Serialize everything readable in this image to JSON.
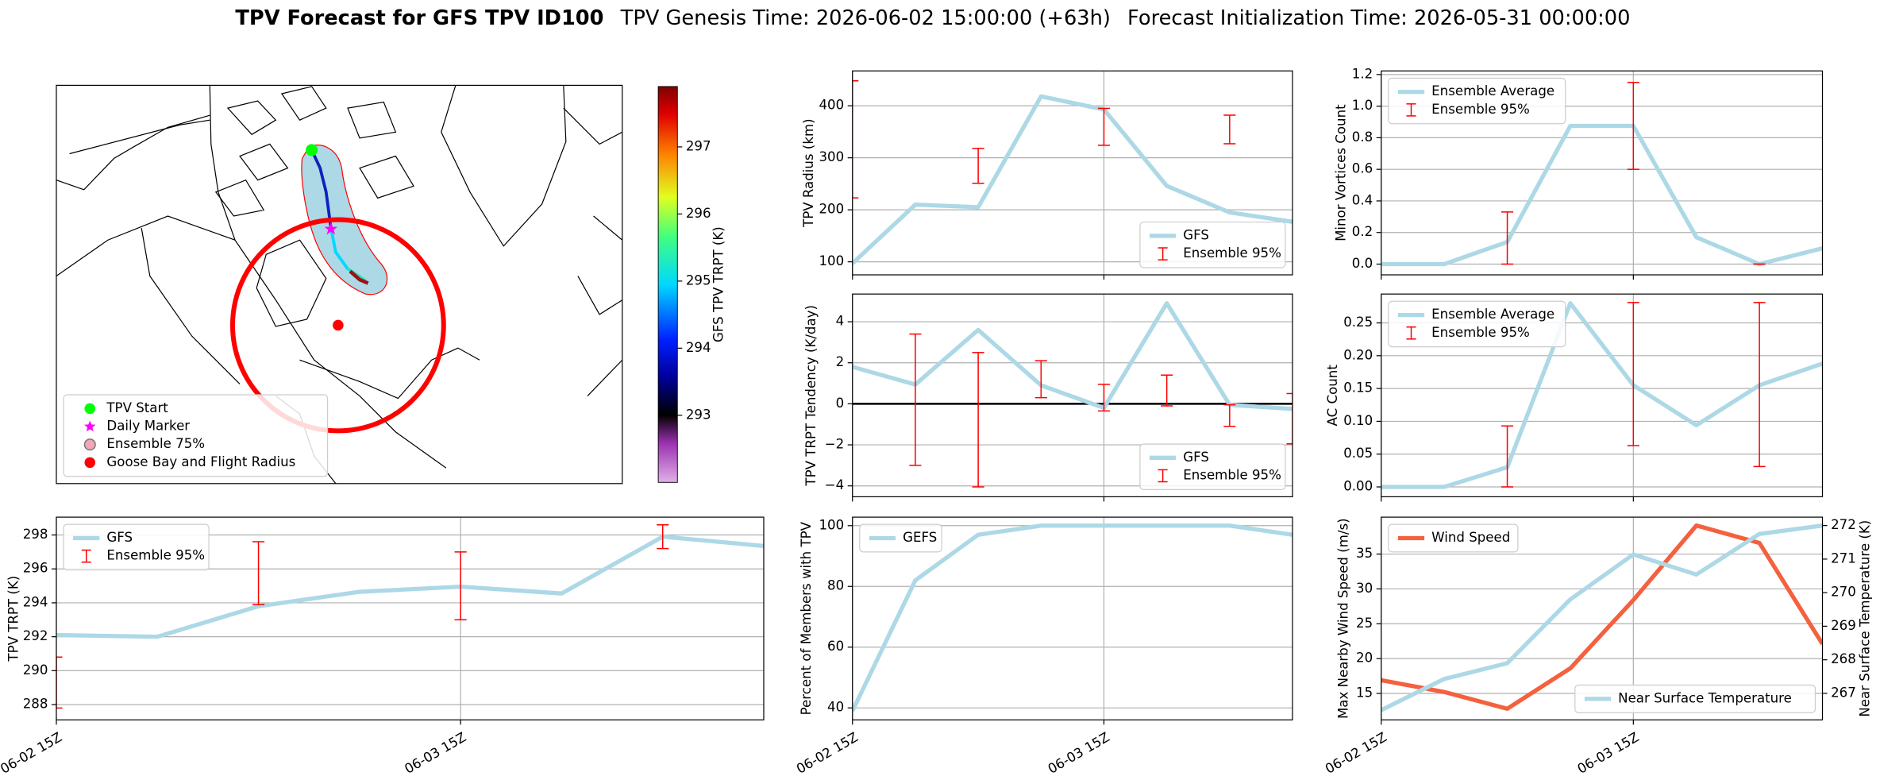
{
  "figure_title": {
    "main": "TPV Forecast for GFS TPV ID100",
    "genesis": "TPV Genesis Time: 2026-06-02 15:00:00 (+63h)",
    "initialization": "Forecast Initialization Time: 2026-05-31 00:00:00"
  },
  "chart_data": [
    {
      "type": "map",
      "legend": [
        {
          "label": "TPV Start",
          "color": "#00ff00"
        },
        {
          "label": "Daily Marker",
          "color": "#ff00ff"
        },
        {
          "label": "Ensemble 75%",
          "color": "#f4a6b8"
        },
        {
          "label": "Goose Bay and Flight Radius",
          "color": "#ff0000"
        }
      ],
      "colorbar": {
        "label": "GFS TPV TRPT (K)",
        "lim": [
          292.0,
          297.9
        ],
        "ticks": [
          293,
          294,
          295,
          296,
          297
        ]
      }
    },
    {
      "type": "line",
      "ylabel": "TPV Radius (km)",
      "ylim": [
        75,
        467
      ],
      "yticks": [
        100,
        200,
        300,
        400
      ],
      "grid": true,
      "legend": "lower right",
      "series": [
        {
          "name": "GFS",
          "color": "#add8e6",
          "values": [
            97,
            210,
            205,
            418,
            393,
            246,
            195,
            177
          ]
        }
      ],
      "error_bars": {
        "name": "Ensemble 95%",
        "color": "#ff0000",
        "lower": [
          223,
          null,
          251,
          null,
          324,
          null,
          327,
          null
        ],
        "upper": [
          448,
          null,
          318,
          null,
          395,
          null,
          382,
          null
        ]
      }
    },
    {
      "type": "line",
      "ylabel": "TPV TRPT Tendency (K/day)",
      "ylim": [
        -4.53,
        5.35
      ],
      "yticks": [
        {
          "value": -4,
          "label": "−4"
        },
        {
          "value": -2,
          "label": "−2"
        },
        0,
        2,
        4
      ],
      "grid": true,
      "legend": "lower right",
      "reference_line": 0,
      "series": [
        {
          "name": "GFS",
          "color": "#add8e6",
          "values": [
            1.8,
            0.94,
            3.6,
            0.9,
            -0.2,
            4.9,
            -0.05,
            -0.25
          ]
        }
      ],
      "error_bars": {
        "name": "Ensemble 95%",
        "color": "#ff0000",
        "lower": [
          null,
          -3.0,
          -4.05,
          0.3,
          -0.35,
          -0.1,
          -1.1,
          -1.95
        ],
        "upper": [
          null,
          3.4,
          2.5,
          2.1,
          0.95,
          1.4,
          -0.05,
          0.5
        ]
      }
    },
    {
      "type": "line",
      "ylabel": "Minor Vortices Count",
      "ylim": [
        -0.068,
        1.223
      ],
      "yticks": [
        {
          "value": 0,
          "label": "0.0"
        },
        0.2,
        0.4,
        0.6,
        0.8,
        {
          "value": 1,
          "label": "1.0"
        },
        1.2
      ],
      "grid": true,
      "legend": "upper left",
      "series": [
        {
          "name": "Ensemble Average",
          "color": "#add8e6",
          "values": [
            0,
            0,
            0.14,
            0.875,
            0.875,
            0.17,
            0,
            0.1
          ]
        }
      ],
      "error_bars": {
        "name": "Ensemble 95%",
        "color": "#ff0000",
        "lower": [
          null,
          null,
          0,
          null,
          0.6,
          null,
          0,
          null
        ],
        "upper": [
          null,
          null,
          0.33,
          null,
          1.15,
          null,
          0,
          null
        ]
      }
    },
    {
      "type": "line",
      "ylabel": "AC Count",
      "ylim": [
        -0.015,
        0.294
      ],
      "yticks": [
        {
          "value": 0,
          "label": "0.00"
        },
        0.05,
        {
          "value": 0.1,
          "label": "0.10"
        },
        0.15,
        {
          "value": 0.2,
          "label": "0.20"
        },
        0.25
      ],
      "grid": true,
      "legend": "upper left",
      "series": [
        {
          "name": "Ensemble Average",
          "color": "#add8e6",
          "values": [
            0,
            0,
            0.03,
            0.28,
            0.155,
            0.094,
            0.155,
            0.188
          ]
        }
      ],
      "error_bars": {
        "name": "Ensemble 95%",
        "color": "#ff0000",
        "lower": [
          null,
          null,
          0,
          null,
          0.063,
          null,
          0.031,
          null
        ],
        "upper": [
          null,
          null,
          0.093,
          null,
          0.281,
          null,
          0.281,
          null
        ]
      }
    },
    {
      "type": "line",
      "ylabel": "TPV TRPT (K)",
      "categories": [
        "06-02 15Z",
        null,
        null,
        null,
        "06-03 15Z",
        null,
        null,
        null
      ],
      "ylim": [
        287.1,
        299.05
      ],
      "yticks": [
        288,
        290,
        292,
        294,
        296,
        298
      ],
      "grid": true,
      "legend": "upper left",
      "series": [
        {
          "name": "GFS",
          "color": "#add8e6",
          "values": [
            292.1,
            292.0,
            293.8,
            294.65,
            294.95,
            294.55,
            297.9,
            297.35
          ]
        }
      ],
      "error_bars": {
        "name": "Ensemble 95%",
        "color": "#ff0000",
        "lower": [
          287.8,
          null,
          293.9,
          null,
          293.0,
          null,
          297.2,
          null
        ],
        "upper": [
          290.8,
          null,
          297.6,
          null,
          297.0,
          null,
          298.6,
          null
        ]
      }
    },
    {
      "type": "line",
      "ylabel": "Percent of Members with TPV",
      "categories": [
        "06-02 15Z",
        null,
        null,
        null,
        "06-03 15Z",
        null,
        null,
        null
      ],
      "ylim": [
        36.05,
        102.8
      ],
      "yticks": [
        40,
        60,
        80,
        100
      ],
      "grid": true,
      "legend": "upper left",
      "series": [
        {
          "name": "GEFS",
          "color": "#add8e6",
          "values": [
            39,
            82,
            97,
            100,
            100,
            100,
            100,
            97
          ]
        }
      ]
    },
    {
      "type": "line",
      "ylabel": "Max Nearby Wind Speed (m/s)",
      "ylabel_color": "#f4613e",
      "y2label": "Near Surface Temperature (K)",
      "y2label_color": "#4169e1",
      "categories": [
        "06-02 15Z",
        null,
        null,
        null,
        "06-03 15Z",
        null,
        null,
        null
      ],
      "ylim": [
        11.2,
        40.3
      ],
      "yticks": [
        15,
        20,
        25,
        30,
        35
      ],
      "y2lim": [
        266.21,
        272.25
      ],
      "y2ticks": [
        267,
        268,
        269,
        270,
        271,
        272
      ],
      "grid": true,
      "legend": "upper left",
      "legend2": "lower right",
      "series": [
        {
          "name": "Wind Speed",
          "color": "#f4613e",
          "values": [
            16.9,
            15.2,
            12.8,
            18.6,
            28.4,
            39.1,
            36.6,
            22.1
          ]
        },
        {
          "name": "Near Surface Temperature",
          "color": "#add8e6",
          "axis": "y2",
          "values": [
            266.5,
            267.43,
            267.9,
            269.8,
            271.14,
            270.54,
            271.75,
            272.0
          ]
        }
      ]
    }
  ]
}
